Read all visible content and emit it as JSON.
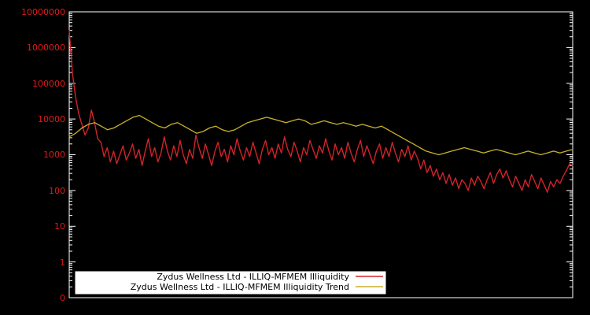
{
  "chart_data": {
    "type": "line",
    "title": "",
    "xlabel": "",
    "ylabel": "",
    "y_scale": "log",
    "y_range": [
      0.1,
      10000000
    ],
    "y_ticks": [
      "10000000",
      "1000000",
      "100000",
      "10000",
      "1000",
      "100",
      "10",
      "1",
      "0"
    ],
    "x_tick_labels": [],
    "grid": false,
    "background_color": "#000000",
    "axis_color": "#ffffff",
    "tick_label_color": "#e01919",
    "legend_position": "bottom-center-inside",
    "legend_background": "#ffffff",
    "series": [
      {
        "name": "Zydus Wellness Ltd - ILLIQ-MFMEM Illiquidity",
        "color": "#d2232a",
        "values": [
          3000000,
          200000,
          40000,
          14000,
          7100,
          3550,
          5600,
          17800,
          7900,
          2800,
          2240,
          890,
          1580,
          630,
          1260,
          560,
          1000,
          1780,
          710,
          1120,
          2000,
          790,
          1410,
          500,
          1260,
          2820,
          890,
          1580,
          630,
          1120,
          3160,
          1260,
          710,
          1780,
          890,
          2510,
          1000,
          560,
          1410,
          790,
          3550,
          1580,
          790,
          2000,
          1000,
          500,
          1260,
          2240,
          890,
          1410,
          630,
          1780,
          1000,
          2820,
          1260,
          710,
          1580,
          890,
          2240,
          1120,
          560,
          1410,
          2510,
          1000,
          1580,
          790,
          2000,
          1120,
          3160,
          1410,
          890,
          2240,
          1260,
          630,
          1580,
          1000,
          2510,
          1410,
          790,
          1780,
          1120,
          2820,
          1260,
          710,
          2000,
          1000,
          1580,
          790,
          2240,
          1120,
          630,
          1410,
          2510,
          890,
          1780,
          1000,
          560,
          1260,
          2000,
          790,
          1580,
          890,
          2240,
          1120,
          630,
          1410,
          890,
          1780,
          710,
          1260,
          790,
          400,
          710,
          316,
          500,
          250,
          400,
          200,
          316,
          158,
          280,
          141,
          224,
          112,
          200,
          158,
          100,
          224,
          141,
          250,
          178,
          112,
          200,
          316,
          158,
          280,
          400,
          224,
          355,
          200,
          126,
          250,
          158,
          100,
          200,
          126,
          280,
          178,
          112,
          224,
          141,
          89,
          178,
          126,
          200,
          158,
          250,
          355,
          560,
          500
        ]
      },
      {
        "name": "Zydus Wellness Ltd - ILLIQ-MFMEM Illiquidity Trend",
        "color": "#c9b227",
        "values": [
          3160,
          3980,
          5620,
          7080,
          7940,
          6310,
          5010,
          5620,
          7080,
          8910,
          11200,
          12600,
          10000,
          7940,
          6310,
          5620,
          7080,
          7940,
          6310,
          5010,
          3980,
          4470,
          5620,
          6310,
          5010,
          4470,
          5010,
          6310,
          7940,
          8910,
          10000,
          11200,
          10000,
          8910,
          7940,
          8910,
          10000,
          8910,
          7080,
          7940,
          8910,
          7940,
          7080,
          7940,
          7080,
          6310,
          7080,
          6310,
          5620,
          6310,
          5010,
          3980,
          3160,
          2510,
          2000,
          1580,
          1260,
          1120,
          1000,
          1120,
          1260,
          1410,
          1580,
          1410,
          1260,
          1120,
          1260,
          1410,
          1260,
          1120,
          1000,
          1120,
          1260,
          1120,
          1000,
          1120,
          1260,
          1120,
          1260,
          1410
        ]
      }
    ]
  }
}
